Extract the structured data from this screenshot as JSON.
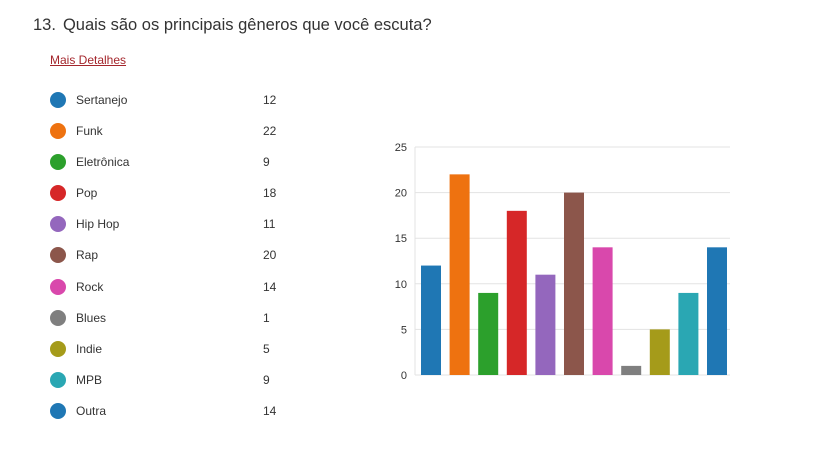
{
  "question": {
    "number": "13.",
    "text": "Quais são os principais gêneros que você escuta?"
  },
  "details_link": "Mais Detalhes",
  "chart_data": {
    "type": "bar",
    "title": "",
    "xlabel": "",
    "ylabel": "",
    "categories": [
      "Sertanejo",
      "Funk",
      "Eletrônica",
      "Pop",
      "Hip Hop",
      "Rap",
      "Rock",
      "Blues",
      "Indie",
      "MPB",
      "Outra"
    ],
    "values": [
      12,
      22,
      9,
      18,
      11,
      20,
      14,
      1,
      5,
      9,
      14
    ],
    "colors": [
      "#1f77b4",
      "#ee7210",
      "#2ca02c",
      "#d62728",
      "#9467bd",
      "#8c564b",
      "#d948ac",
      "#7f7f7f",
      "#a59b1a",
      "#2aa7b3",
      "#1f77b4"
    ],
    "ylim": [
      0,
      25
    ],
    "yticks": [
      "0",
      "5",
      "10",
      "15",
      "20",
      "25"
    ],
    "grid": true,
    "legend": "left"
  }
}
